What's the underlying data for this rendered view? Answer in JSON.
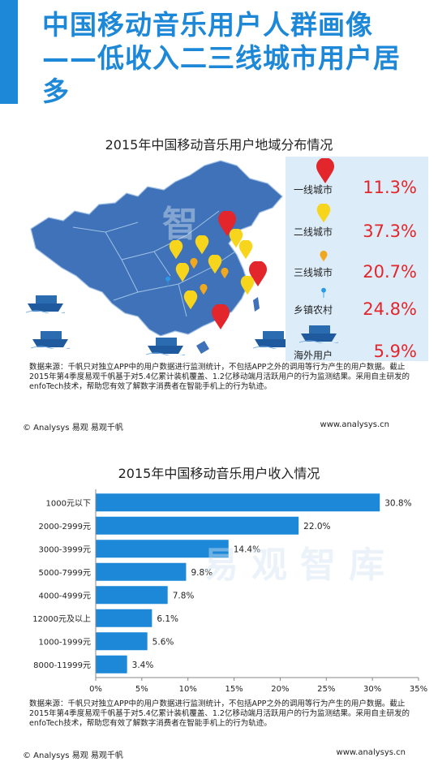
{
  "header": {
    "title": "中国移动音乐用户人群画像——低收入二三线城市用户居多",
    "accent_color": "#1e88d8"
  },
  "map_section": {
    "title": "2015年中国移动音乐用户地域分布情况",
    "legend": [
      {
        "label": "一线城市",
        "value": "11.3%",
        "icon": "red-map-pin-icon"
      },
      {
        "label": "二线城市",
        "value": "37.3%",
        "icon": "yellow-map-pin-icon"
      },
      {
        "label": "三线城市",
        "value": "20.7%",
        "icon": "small-orange-pin-icon"
      },
      {
        "label": "乡镇农村",
        "value": "24.8%",
        "icon": "blue-pin-icon"
      },
      {
        "label": "海外用户",
        "value": "5.9%",
        "icon": "cargo-ship-icon"
      }
    ],
    "note": "数据来源：千帆只对独立APP中的用户数据进行监测统计，不包括APP之外的调用等行为产生的用户数据。截止2015年第4季度易观千帆基于对5.4亿累计装机覆盖、1.2亿移动端月活跃用户的行为监测结果。采用自主研发的enfoTech技术，帮助您有效了解数字消费者在智能手机上的行为轨迹。",
    "footer_left": "© Analysys 易观 易观千帆",
    "footer_right": "www.analysys.cn",
    "watermark": "智"
  },
  "income_section": {
    "title": "2015年中国移动音乐用户收入情况",
    "note": "数据来源：千帆只对独立APP中的用户数据进行监测统计，不包括APP之外的调用等行为产生的用户数据。截止2015年第4季度易观千帆基于对5.4亿累计装机覆盖、1.2亿移动端月活跃用户的行为监测结果。采用自主研发的enfoTech技术，帮助您有效了解数字消费者在智能手机上的行为轨迹。",
    "footer_left": "© Analysys 易观 易观千帆",
    "footer_right": "www.analysys.cn",
    "watermark": "易观智库"
  },
  "chart_data": [
    {
      "type": "table",
      "title": "2015年中国移动音乐用户地域分布情况",
      "categories": [
        "一线城市",
        "二线城市",
        "三线城市",
        "乡镇农村",
        "海外用户"
      ],
      "values": [
        11.3,
        37.3,
        20.7,
        24.8,
        5.9
      ],
      "value_labels": [
        "11.3%",
        "37.3%",
        "20.7%",
        "24.8%",
        "5.9%"
      ]
    },
    {
      "type": "bar",
      "orientation": "horizontal",
      "title": "2015年中国移动音乐用户收入情况",
      "categories": [
        "1000元以下",
        "2000-2999元",
        "3000-3999元",
        "5000-7999元",
        "4000-4999元",
        "12000元及以上",
        "1000-1999元",
        "8000-11999元"
      ],
      "values": [
        30.8,
        22.0,
        14.4,
        9.8,
        7.8,
        6.1,
        5.6,
        3.4
      ],
      "value_labels": [
        "30.8%",
        "22.0%",
        "14.4%",
        "9.8%",
        "7.8%",
        "6.1%",
        "5.6%",
        "3.4%"
      ],
      "xlim": [
        0,
        35
      ],
      "xticks": [
        "0%",
        "5%",
        "10%",
        "15%",
        "20%",
        "25%",
        "30%",
        "35%"
      ],
      "bar_color": "#1e88d8",
      "grid": false
    }
  ]
}
